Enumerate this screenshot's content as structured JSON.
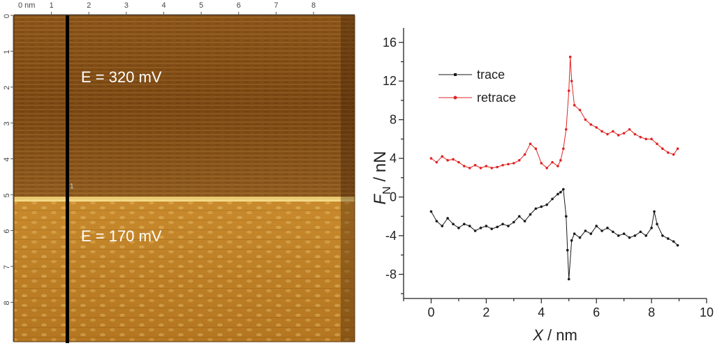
{
  "colors": {
    "trace": "#1a1a1a",
    "retrace": "#e02424",
    "afm_dark": "#6a3a0c",
    "afm_bright": "#e8b64a",
    "marker_line": "#000000"
  },
  "afm_image": {
    "x_unit": "0 nm",
    "x_ticks": [
      "1",
      "2",
      "3",
      "4",
      "5",
      "6",
      "7",
      "8"
    ],
    "y_ticks": [
      "0",
      "1",
      "2",
      "3",
      "4",
      "5",
      "6",
      "7",
      "8"
    ],
    "upper_label": "E = 320 mV",
    "lower_label": "E = 170 mV",
    "marker_label": "1",
    "boundary_nm": 4.95,
    "marker_x_nm": 1.35
  },
  "chart_data": {
    "type": "line",
    "xlabel": "X",
    "xlabel_unit": " / nm",
    "ylabel_sym": "F",
    "ylabel_sub": "N",
    "ylabel_unit": " / nN",
    "xlim": [
      -1,
      10
    ],
    "ylim": [
      -10.5,
      17.5
    ],
    "xticks": [
      0,
      2,
      4,
      6,
      8,
      10
    ],
    "yticks": [
      -8,
      -4,
      0,
      4,
      8,
      12,
      16
    ],
    "legend_position": "top-left",
    "series": [
      {
        "name": "trace",
        "x": [
          0.0,
          0.2,
          0.4,
          0.6,
          0.8,
          1.0,
          1.2,
          1.4,
          1.6,
          1.8,
          2.0,
          2.2,
          2.4,
          2.6,
          2.8,
          3.0,
          3.2,
          3.4,
          3.6,
          3.8,
          4.0,
          4.2,
          4.4,
          4.6,
          4.7,
          4.8,
          4.9,
          4.95,
          5.0,
          5.1,
          5.2,
          5.4,
          5.6,
          5.8,
          6.0,
          6.2,
          6.4,
          6.6,
          6.8,
          7.0,
          7.2,
          7.4,
          7.6,
          7.8,
          8.0,
          8.1,
          8.2,
          8.4,
          8.6,
          8.8,
          8.95
        ],
        "values": [
          -1.5,
          -2.5,
          -3.0,
          -2.2,
          -2.8,
          -3.2,
          -2.8,
          -3.0,
          -3.5,
          -3.2,
          -3.0,
          -3.3,
          -3.1,
          -2.8,
          -3.0,
          -2.6,
          -2.0,
          -2.5,
          -1.8,
          -1.2,
          -1.0,
          -0.8,
          -0.2,
          0.3,
          0.5,
          0.8,
          -2.0,
          -5.5,
          -8.5,
          -4.5,
          -3.8,
          -4.2,
          -3.5,
          -3.8,
          -3.0,
          -3.5,
          -3.2,
          -3.6,
          -4.0,
          -3.8,
          -4.2,
          -4.0,
          -3.6,
          -4.0,
          -3.2,
          -1.5,
          -2.8,
          -4.0,
          -4.3,
          -4.6,
          -5.0
        ]
      },
      {
        "name": "retrace",
        "x": [
          0.0,
          0.2,
          0.4,
          0.6,
          0.8,
          1.0,
          1.2,
          1.4,
          1.6,
          1.8,
          2.0,
          2.2,
          2.4,
          2.6,
          2.8,
          3.0,
          3.2,
          3.4,
          3.6,
          3.8,
          4.0,
          4.2,
          4.4,
          4.6,
          4.7,
          4.8,
          4.9,
          5.0,
          5.05,
          5.1,
          5.2,
          5.4,
          5.6,
          5.8,
          6.0,
          6.2,
          6.4,
          6.6,
          6.8,
          7.0,
          7.2,
          7.4,
          7.6,
          7.8,
          8.0,
          8.2,
          8.4,
          8.6,
          8.8,
          8.95
        ],
        "values": [
          4.0,
          3.6,
          4.2,
          3.8,
          3.9,
          3.6,
          3.2,
          3.0,
          3.3,
          3.0,
          3.2,
          3.0,
          3.1,
          3.3,
          3.4,
          3.5,
          3.8,
          4.4,
          5.5,
          5.0,
          3.5,
          3.0,
          3.6,
          3.2,
          3.8,
          5.0,
          7.0,
          11.0,
          14.5,
          12.0,
          9.5,
          9.0,
          8.0,
          7.5,
          7.2,
          6.8,
          6.5,
          6.8,
          6.4,
          6.6,
          7.0,
          6.5,
          6.2,
          6.0,
          6.0,
          5.5,
          5.0,
          4.6,
          4.4,
          5.0
        ]
      }
    ]
  }
}
